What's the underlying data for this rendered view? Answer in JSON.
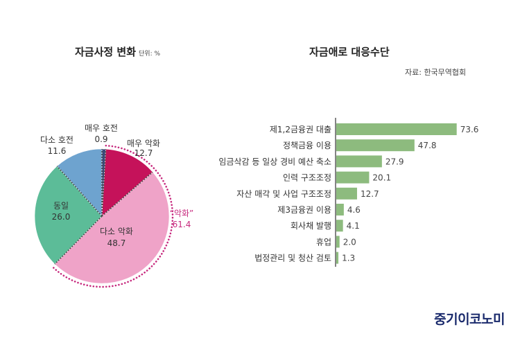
{
  "left_title": "자금사정 변화",
  "left_unit": "단위: %",
  "right_title": "자금애로 대응수단",
  "source": "자료: 한국무역협회",
  "brand": "중기이코노미",
  "chart_data": [
    {
      "type": "pie",
      "title": "자금사정 변화",
      "unit": "단위: %",
      "slices": [
        {
          "label": "매우 호전",
          "value": 0.9,
          "color": "#3a4a7a"
        },
        {
          "label": "매우 악화",
          "value": 12.7,
          "color": "#c5125a"
        },
        {
          "label": "다소 악화",
          "value": 48.7,
          "color": "#efa3c8"
        },
        {
          "label": "동일",
          "value": 26.0,
          "color": "#5cbc98"
        },
        {
          "label": "다소 호전",
          "value": 11.6,
          "color": "#6ea3cf"
        }
      ],
      "annotation": {
        "label": "“악화”",
        "value": 61.4,
        "color": "#c72a7e"
      }
    },
    {
      "type": "bar",
      "orientation": "horizontal",
      "title": "자금애로 대응수단",
      "categories": [
        "제1,2금융권 대출",
        "정책금융 이용",
        "임금삭감 등 일상 경비 예산 축소",
        "인력 구조조정",
        "자산 매각 및 사업 구조조정",
        "제3금융권 이용",
        "회사채 발행",
        "휴업",
        "법정관리 및 청산 검토"
      ],
      "values": [
        73.6,
        47.8,
        27.9,
        20.1,
        12.7,
        4.6,
        4.1,
        2.0,
        1.3
      ],
      "color": "#8dbb7e"
    }
  ]
}
